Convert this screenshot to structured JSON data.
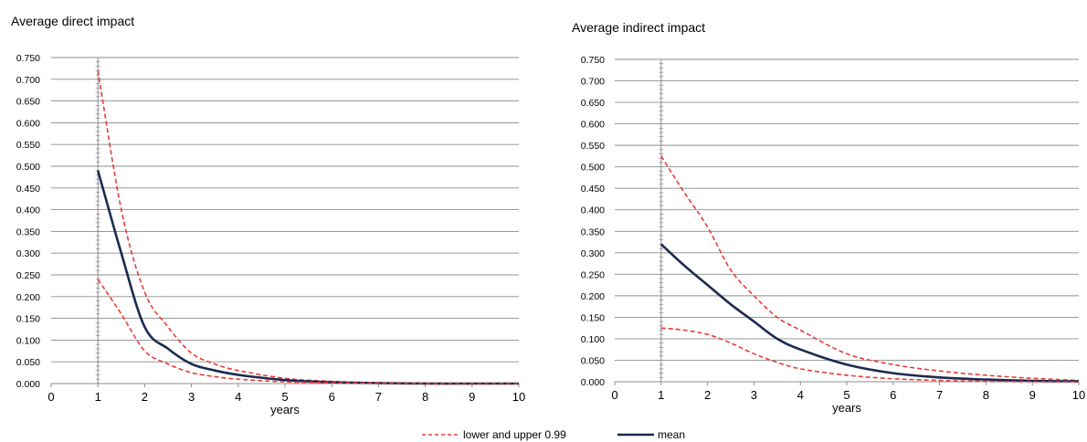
{
  "chart_data": [
    {
      "type": "line",
      "title": "Average direct impact",
      "xlabel": "years",
      "ylabel": "",
      "xlim": [
        0,
        10
      ],
      "ylim": [
        0,
        0.75
      ],
      "x_ticks": [
        "0",
        "1",
        "2",
        "3",
        "4",
        "5",
        "6",
        "7",
        "8",
        "9",
        "10"
      ],
      "y_ticks": [
        "0.000",
        "0.050",
        "0.100",
        "0.150",
        "0.200",
        "0.250",
        "0.300",
        "0.350",
        "0.400",
        "0.450",
        "0.500",
        "0.550",
        "0.600",
        "0.650",
        "0.700",
        "0.750"
      ],
      "grid": true,
      "x": [
        1,
        1.5,
        2,
        2.5,
        3,
        3.5,
        4,
        5,
        6,
        7,
        8,
        9,
        10
      ],
      "series": [
        {
          "name": "lower and upper 0.99",
          "style": "dashed",
          "color": "#e83b3b",
          "values": [
            0.72,
            0.4,
            0.21,
            0.13,
            0.07,
            0.045,
            0.03,
            0.012,
            0.005,
            0.002,
            0.001,
            0.0,
            0.0
          ]
        },
        {
          "name": "mean",
          "style": "solid",
          "color": "#1b2a4e",
          "values": [
            0.49,
            0.3,
            0.13,
            0.08,
            0.045,
            0.03,
            0.02,
            0.008,
            0.003,
            0.001,
            0.0,
            0.0,
            0.0
          ]
        },
        {
          "name": "lower and upper 0.99",
          "style": "dashed",
          "color": "#e83b3b",
          "values": [
            0.24,
            0.16,
            0.075,
            0.045,
            0.025,
            0.016,
            0.01,
            0.004,
            0.002,
            0.001,
            0.0,
            0.0,
            0.0
          ]
        }
      ]
    },
    {
      "type": "line",
      "title": "Average indirect impact",
      "xlabel": "years",
      "ylabel": "",
      "xlim": [
        0,
        10
      ],
      "ylim": [
        0,
        0.75
      ],
      "x_ticks": [
        "0",
        "1",
        "2",
        "3",
        "4",
        "5",
        "6",
        "7",
        "8",
        "9",
        "10"
      ],
      "y_ticks": [
        "0.000",
        "0.050",
        "0.100",
        "0.150",
        "0.200",
        "0.250",
        "0.300",
        "0.350",
        "0.400",
        "0.450",
        "0.500",
        "0.550",
        "0.600",
        "0.650",
        "0.700",
        "0.750"
      ],
      "grid": true,
      "x": [
        1,
        1.5,
        2,
        2.5,
        3,
        3.5,
        4,
        5,
        6,
        7,
        8,
        9,
        10
      ],
      "series": [
        {
          "name": "lower and upper 0.99",
          "style": "dashed",
          "color": "#e83b3b",
          "values": [
            0.525,
            0.44,
            0.36,
            0.26,
            0.2,
            0.15,
            0.12,
            0.065,
            0.04,
            0.025,
            0.015,
            0.008,
            0.003
          ]
        },
        {
          "name": "mean",
          "style": "solid",
          "color": "#1b2a4e",
          "values": [
            0.32,
            0.27,
            0.225,
            0.18,
            0.14,
            0.1,
            0.075,
            0.04,
            0.02,
            0.01,
            0.005,
            0.002,
            0.001
          ]
        },
        {
          "name": "lower and upper 0.99",
          "style": "dashed",
          "color": "#e83b3b",
          "values": [
            0.125,
            0.12,
            0.11,
            0.09,
            0.065,
            0.045,
            0.03,
            0.015,
            0.007,
            0.003,
            0.001,
            0.0,
            0.0
          ]
        }
      ]
    }
  ],
  "legend": {
    "placement": "bottom-center",
    "items": [
      {
        "label": "lower and upper 0.99",
        "style": "dashed",
        "color": "#e83b3b"
      },
      {
        "label": "mean",
        "style": "solid",
        "color": "#1b2a4e"
      }
    ]
  }
}
